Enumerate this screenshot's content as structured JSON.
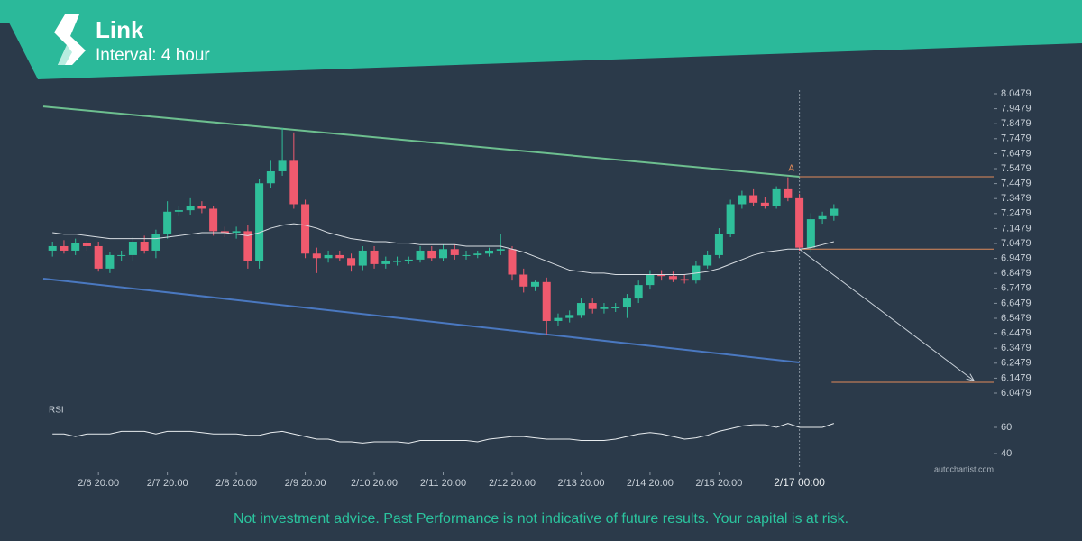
{
  "chart_data": {
    "type": "candlestick",
    "title": "Link",
    "subtitle": "Interval: 4 hour",
    "disclaimer": "Not investment advice. Past Performance is not indicative of future results. Your capital is at risk.",
    "watermark": "autochartist.com",
    "indicator_label": "RSI",
    "annotation": {
      "text": "A",
      "x": 64.3,
      "y": 7.55
    },
    "up_color": "#2fbf9a",
    "down_color": "#f05a6e",
    "open": [
      7.0,
      7.03,
      7.0,
      7.05,
      7.03,
      6.88,
      6.97,
      6.97,
      7.06,
      7.0,
      7.11,
      7.26,
      7.27,
      7.3,
      7.28,
      7.13,
      7.12,
      7.13,
      6.93,
      7.45,
      7.53,
      7.6,
      7.31,
      6.98,
      6.95,
      6.97,
      6.95,
      6.9,
      7.0,
      6.91,
      6.93,
      6.93,
      6.94,
      7.0,
      6.95,
      7.01,
      6.97,
      6.97,
      6.98,
      7.0,
      7.01,
      6.84,
      6.76,
      6.79,
      6.53,
      6.55,
      6.57,
      6.65,
      6.61,
      6.62,
      6.62,
      6.68,
      6.77,
      6.84,
      6.83,
      6.81,
      6.8,
      6.9,
      6.97,
      7.11,
      7.31,
      7.37,
      7.32,
      7.3,
      7.41,
      7.35,
      7.02,
      7.21,
      7.23
    ],
    "high": [
      7.06,
      7.07,
      7.08,
      7.07,
      7.06,
      6.99,
      7.0,
      7.09,
      7.1,
      7.14,
      7.33,
      7.3,
      7.35,
      7.33,
      7.3,
      7.16,
      7.16,
      7.17,
      7.48,
      7.6,
      7.82,
      7.79,
      7.34,
      7.02,
      7.0,
      7.0,
      6.98,
      7.03,
      7.03,
      6.96,
      6.96,
      6.96,
      7.03,
      7.03,
      7.04,
      7.04,
      7.0,
      7.0,
      7.02,
      7.11,
      7.03,
      6.88,
      6.8,
      6.82,
      6.58,
      6.6,
      6.68,
      6.68,
      6.65,
      6.65,
      6.71,
      6.8,
      6.87,
      6.87,
      6.86,
      6.84,
      6.93,
      7.0,
      7.15,
      7.34,
      7.4,
      7.41,
      7.36,
      7.43,
      7.49,
      7.38,
      7.25,
      7.26,
      7.31
    ],
    "low": [
      6.96,
      6.98,
      6.97,
      7.0,
      6.86,
      6.85,
      6.93,
      6.93,
      6.98,
      6.95,
      7.08,
      7.23,
      7.24,
      7.25,
      7.1,
      7.09,
      7.08,
      6.88,
      6.88,
      7.42,
      7.5,
      7.28,
      6.95,
      6.85,
      6.92,
      6.93,
      6.86,
      6.87,
      6.88,
      6.88,
      6.9,
      6.91,
      6.92,
      6.93,
      6.93,
      6.94,
      6.94,
      6.95,
      6.96,
      6.97,
      6.8,
      6.72,
      6.73,
      6.44,
      6.5,
      6.52,
      6.55,
      6.58,
      6.58,
      6.59,
      6.55,
      6.65,
      6.74,
      6.8,
      6.79,
      6.78,
      6.78,
      6.88,
      6.95,
      7.09,
      7.28,
      7.3,
      7.28,
      7.28,
      7.33,
      7.0,
      6.99,
      7.18,
      7.2
    ],
    "close": [
      7.03,
      7.0,
      7.05,
      7.03,
      6.88,
      6.97,
      6.97,
      7.06,
      7.0,
      7.11,
      7.26,
      7.27,
      7.3,
      7.28,
      7.13,
      7.12,
      7.13,
      6.93,
      7.45,
      7.53,
      7.6,
      7.31,
      6.98,
      6.95,
      6.97,
      6.95,
      6.9,
      7.0,
      6.91,
      6.93,
      6.93,
      6.94,
      7.0,
      6.95,
      7.01,
      6.97,
      6.97,
      6.98,
      7.0,
      7.01,
      6.84,
      6.76,
      6.79,
      6.53,
      6.55,
      6.57,
      6.65,
      6.61,
      6.62,
      6.62,
      6.68,
      6.77,
      6.84,
      6.83,
      6.81,
      6.8,
      6.9,
      6.97,
      7.11,
      7.31,
      7.37,
      7.32,
      7.3,
      7.41,
      7.35,
      7.02,
      7.21,
      7.23,
      7.28
    ],
    "moving_average": {
      "color": "#d8dde2",
      "values": [
        7.12,
        7.11,
        7.11,
        7.1,
        7.09,
        7.08,
        7.08,
        7.08,
        7.08,
        7.08,
        7.09,
        7.1,
        7.11,
        7.12,
        7.12,
        7.12,
        7.11,
        7.1,
        7.12,
        7.15,
        7.17,
        7.18,
        7.17,
        7.15,
        7.12,
        7.1,
        7.08,
        7.07,
        7.06,
        7.06,
        7.05,
        7.05,
        7.04,
        7.04,
        7.04,
        7.04,
        7.03,
        7.03,
        7.03,
        7.03,
        7.01,
        6.99,
        6.96,
        6.93,
        6.9,
        6.87,
        6.86,
        6.85,
        6.85,
        6.84,
        6.84,
        6.84,
        6.84,
        6.84,
        6.84,
        6.84,
        6.85,
        6.86,
        6.88,
        6.91,
        6.94,
        6.97,
        6.99,
        7.0,
        7.01,
        7.01,
        7.02,
        7.04,
        7.06
      ]
    },
    "rsi": {
      "color": "#e8ecef",
      "values": [
        55,
        55,
        53,
        55,
        55,
        55,
        57,
        57,
        57,
        55,
        57,
        57,
        57,
        56,
        55,
        55,
        55,
        54,
        54,
        56,
        57,
        55,
        53,
        51,
        51,
        49,
        49,
        48,
        49,
        49,
        49,
        48,
        50,
        50,
        50,
        50,
        50,
        49,
        51,
        52,
        53,
        53,
        52,
        51,
        51,
        51,
        50,
        50,
        50,
        51,
        53,
        55,
        56,
        55,
        53,
        51,
        52,
        54,
        57,
        59,
        61,
        62,
        62,
        60,
        63,
        60,
        60,
        60,
        63
      ]
    },
    "trendlines": [
      {
        "color": "#6dbf8f",
        "x": [
          -0.8,
          65
        ],
        "y": [
          7.963,
          7.494
        ]
      },
      {
        "color": "#4a78c0",
        "x": [
          -0.8,
          65
        ],
        "y": [
          6.813,
          6.253
        ]
      }
    ],
    "levels": [
      {
        "color": "#e08a5a",
        "x": [
          65,
          81.9
        ],
        "y": 7.494
      },
      {
        "color": "#e08a5a",
        "x": [
          65,
          81.9
        ],
        "y": 7.01
      },
      {
        "color": "#e08a5a",
        "x": [
          67.8,
          81.9
        ],
        "y": 6.12
      }
    ],
    "forecast_arrow": {
      "color": "#c8d0d8",
      "x": [
        65,
        80.2
      ],
      "y": [
        7.01,
        6.13
      ]
    },
    "marker_x": 65,
    "xlim": [
      -0.8,
      81.9
    ],
    "xticks": [
      {
        "value": 4,
        "label": "2/6 20:00"
      },
      {
        "value": 10,
        "label": "2/7 20:00"
      },
      {
        "value": 16,
        "label": "2/8 20:00"
      },
      {
        "value": 22,
        "label": "2/9 20:00"
      },
      {
        "value": 28,
        "label": "2/10 20:00"
      },
      {
        "value": 34,
        "label": "2/11 20:00"
      },
      {
        "value": 40,
        "label": "2/12 20:00"
      },
      {
        "value": 46,
        "label": "2/13 20:00"
      },
      {
        "value": 52,
        "label": "2/14 20:00"
      },
      {
        "value": 58,
        "label": "2/15 20:00"
      },
      {
        "value": 65,
        "label": "2/17 00:00"
      }
    ],
    "ylim": [
      6.0479,
      8.0479
    ],
    "yticks": [
      8.0479,
      7.9479,
      7.8479,
      7.7479,
      7.6479,
      7.5479,
      7.4479,
      7.3479,
      7.2479,
      7.1479,
      7.0479,
      6.9479,
      6.8479,
      6.7479,
      6.6479,
      6.5479,
      6.4479,
      6.3479,
      6.2479,
      6.1479,
      6.0479
    ],
    "y2lim": [
      40,
      60
    ],
    "y2ticks": [
      60,
      40
    ]
  }
}
